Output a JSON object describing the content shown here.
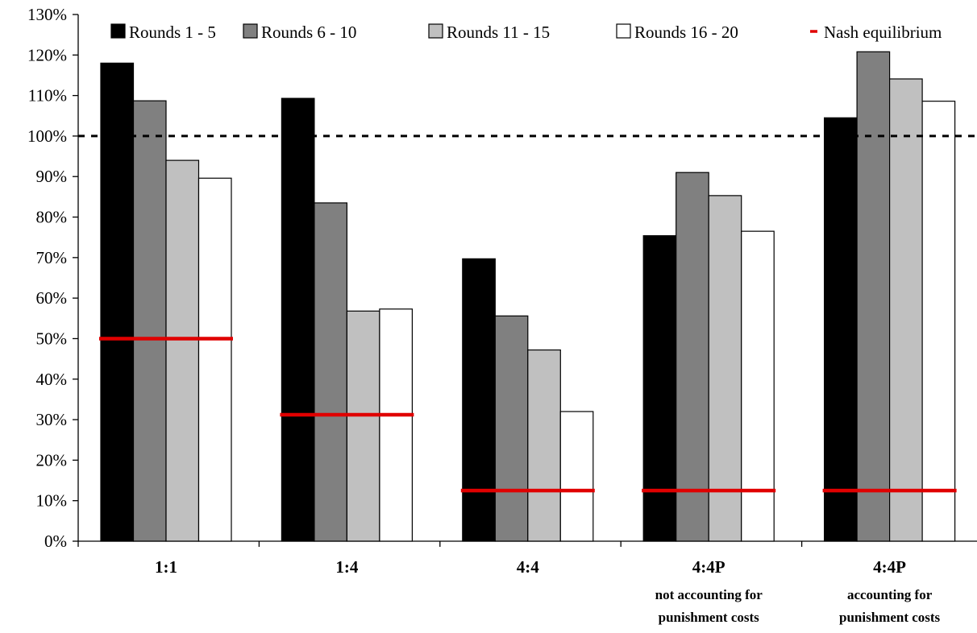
{
  "chart_data": {
    "type": "bar",
    "categories": [
      {
        "label": "1:1",
        "sub": []
      },
      {
        "label": "1:4",
        "sub": []
      },
      {
        "label": "4:4",
        "sub": []
      },
      {
        "label": "4:4P",
        "sub": [
          "not accounting for",
          "punishment costs"
        ]
      },
      {
        "label": "4:4P",
        "sub": [
          "accounting for",
          "punishment costs"
        ]
      }
    ],
    "series": [
      {
        "name": "Rounds 1 - 5",
        "color": "#000000",
        "values": [
          118,
          109.3,
          69.7,
          75.4,
          104.5
        ]
      },
      {
        "name": "Rounds 6 - 10",
        "color": "#808080",
        "values": [
          108.7,
          83.5,
          55.6,
          91,
          120.8
        ]
      },
      {
        "name": "Rounds 11 - 15",
        "color": "#c0c0c0",
        "values": [
          94,
          56.8,
          47.2,
          85.3,
          114.1
        ]
      },
      {
        "name": "Rounds 16 - 20",
        "color": "#ffffff",
        "values": [
          89.6,
          57.3,
          32,
          76.5,
          108.6
        ]
      }
    ],
    "nash": {
      "name": "Nash equilibrium",
      "color": "#e00000",
      "values": [
        50,
        31.2,
        12.5,
        12.5,
        12.5
      ]
    },
    "reference_line": 100,
    "ylim": [
      0,
      130
    ],
    "yticks": [
      0,
      10,
      20,
      30,
      40,
      50,
      60,
      70,
      80,
      90,
      100,
      110,
      120,
      130
    ],
    "ytick_labels": [
      "0%",
      "10%",
      "20%",
      "30%",
      "40%",
      "50%",
      "60%",
      "70%",
      "80%",
      "90%",
      "100%",
      "110%",
      "120%",
      "130%"
    ],
    "legend_position": "top-right",
    "grid": false,
    "title": "",
    "xlabel": "",
    "ylabel": ""
  }
}
